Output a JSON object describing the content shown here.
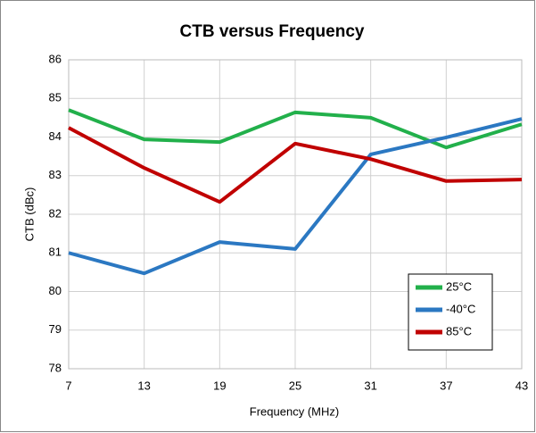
{
  "chart_data": {
    "type": "line",
    "title": "CTB versus Frequency",
    "x_label": "Frequency (MHz)",
    "y_label": "CTB (dBc)",
    "x": [
      7,
      13,
      19,
      25,
      31,
      37,
      43
    ],
    "series": [
      {
        "name": "25°C",
        "color": "#22b04b",
        "values": [
          84.7,
          83.94,
          83.87,
          84.64,
          84.5,
          83.73,
          84.33
        ]
      },
      {
        "name": "-40°C",
        "color": "#2b78c2",
        "values": [
          81.0,
          80.47,
          81.28,
          81.1,
          83.55,
          83.99,
          84.47
        ]
      },
      {
        "name": "85°C",
        "color": "#c00000",
        "values": [
          84.24,
          83.2,
          82.32,
          83.83,
          83.43,
          82.86,
          82.9
        ]
      }
    ],
    "xlim": [
      7,
      43
    ],
    "xticks": [
      7,
      13,
      19,
      25,
      31,
      37,
      43
    ],
    "ylim": [
      78,
      86
    ],
    "yticks": [
      78,
      79,
      80,
      81,
      82,
      83,
      84,
      85,
      86
    ],
    "grid": true,
    "legend": "lower right"
  }
}
